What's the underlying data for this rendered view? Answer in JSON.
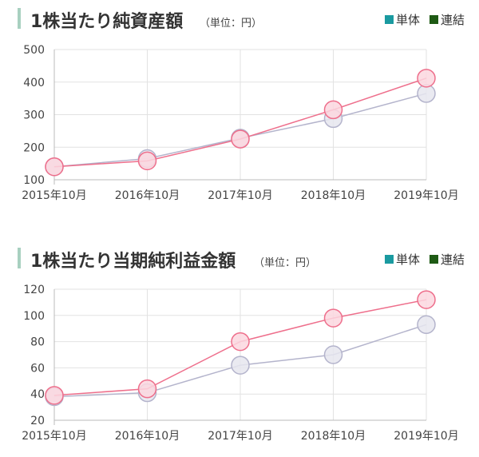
{
  "legend": {
    "single_label": "単体",
    "consolidated_label": "連結",
    "single_color": "#1a9aa0",
    "consolidated_color": "#1e5a14"
  },
  "series_colors": {
    "pink_line": "#ee6f8c",
    "pink_fill": "#fbd7df",
    "gray_line": "#b4b4cc",
    "gray_fill": "#e6e6ee"
  },
  "chart_data": [
    {
      "type": "line",
      "title": "1株当たり純資産額",
      "unit_label": "（単位：円）",
      "categories": [
        "2015年10月",
        "2016年10月",
        "2017年10月",
        "2018年10月",
        "2019年10月"
      ],
      "ylim": [
        100,
        500
      ],
      "yticks": [
        100,
        200,
        300,
        400,
        500
      ],
      "grid": true,
      "legend_position": "top-right",
      "series": [
        {
          "key": "pink",
          "values": [
            140,
            158,
            225,
            315,
            412
          ]
        },
        {
          "key": "gray",
          "values": [
            140,
            165,
            228,
            288,
            365
          ]
        }
      ]
    },
    {
      "type": "line",
      "title": "1株当たり当期純利益金額",
      "unit_label": "（単位：円）",
      "categories": [
        "2015年10月",
        "2016年10月",
        "2017年10月",
        "2018年10月",
        "2019年10月"
      ],
      "ylim": [
        20,
        120
      ],
      "yticks": [
        20,
        40,
        60,
        80,
        100,
        120
      ],
      "grid": true,
      "legend_position": "top-right",
      "series": [
        {
          "key": "pink",
          "values": [
            39,
            44,
            80,
            98,
            112
          ]
        },
        {
          "key": "gray",
          "values": [
            38,
            41,
            62,
            70,
            93
          ]
        }
      ]
    }
  ]
}
